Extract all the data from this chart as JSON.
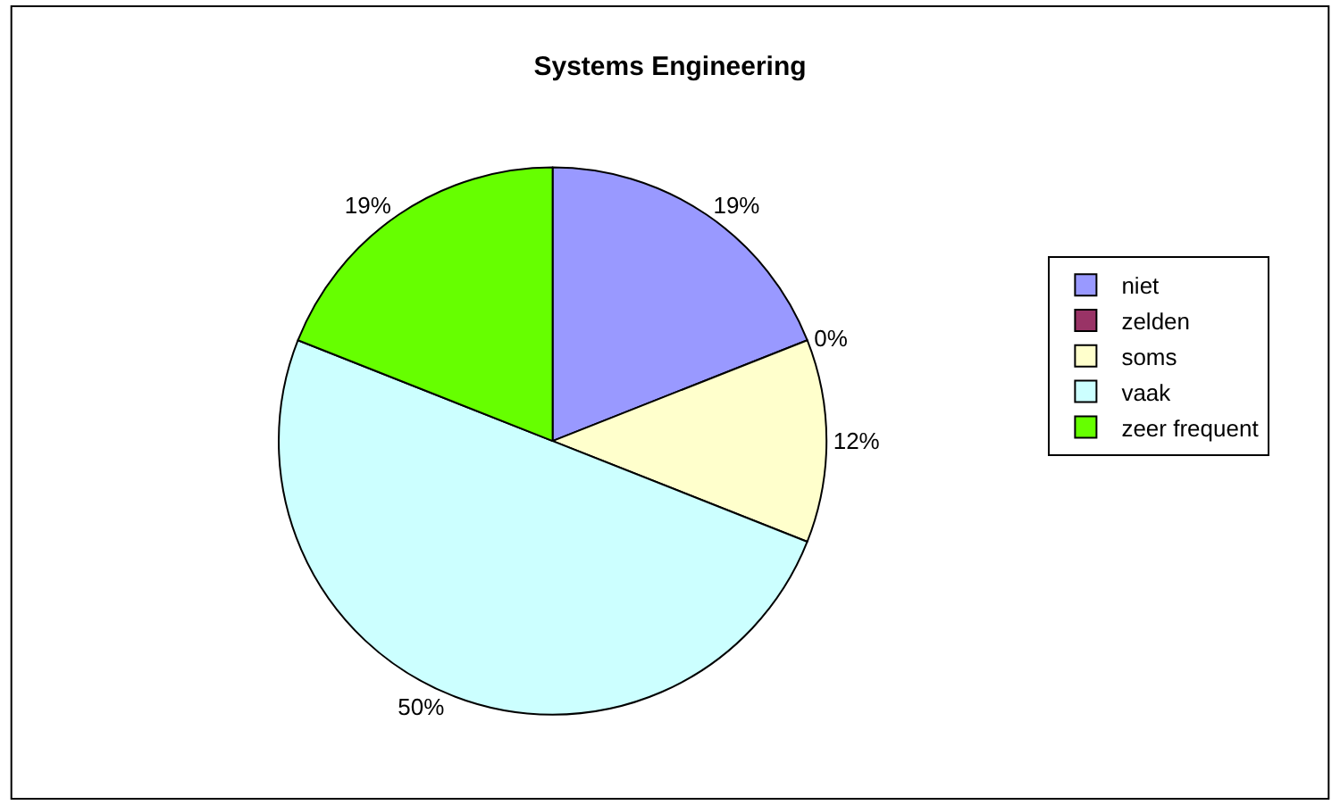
{
  "chart_data": {
    "type": "pie",
    "title": "Systems Engineering",
    "categories": [
      "niet",
      "zelden",
      "soms",
      "vaak",
      "zeer frequent"
    ],
    "values": [
      19,
      0,
      12,
      50,
      19
    ],
    "value_labels": [
      "19%",
      "0%",
      "12%",
      "50%",
      "19%"
    ],
    "colors": [
      "#9999ff",
      "#993366",
      "#ffffcc",
      "#ccffff",
      "#66ff00"
    ],
    "legend": "right"
  }
}
